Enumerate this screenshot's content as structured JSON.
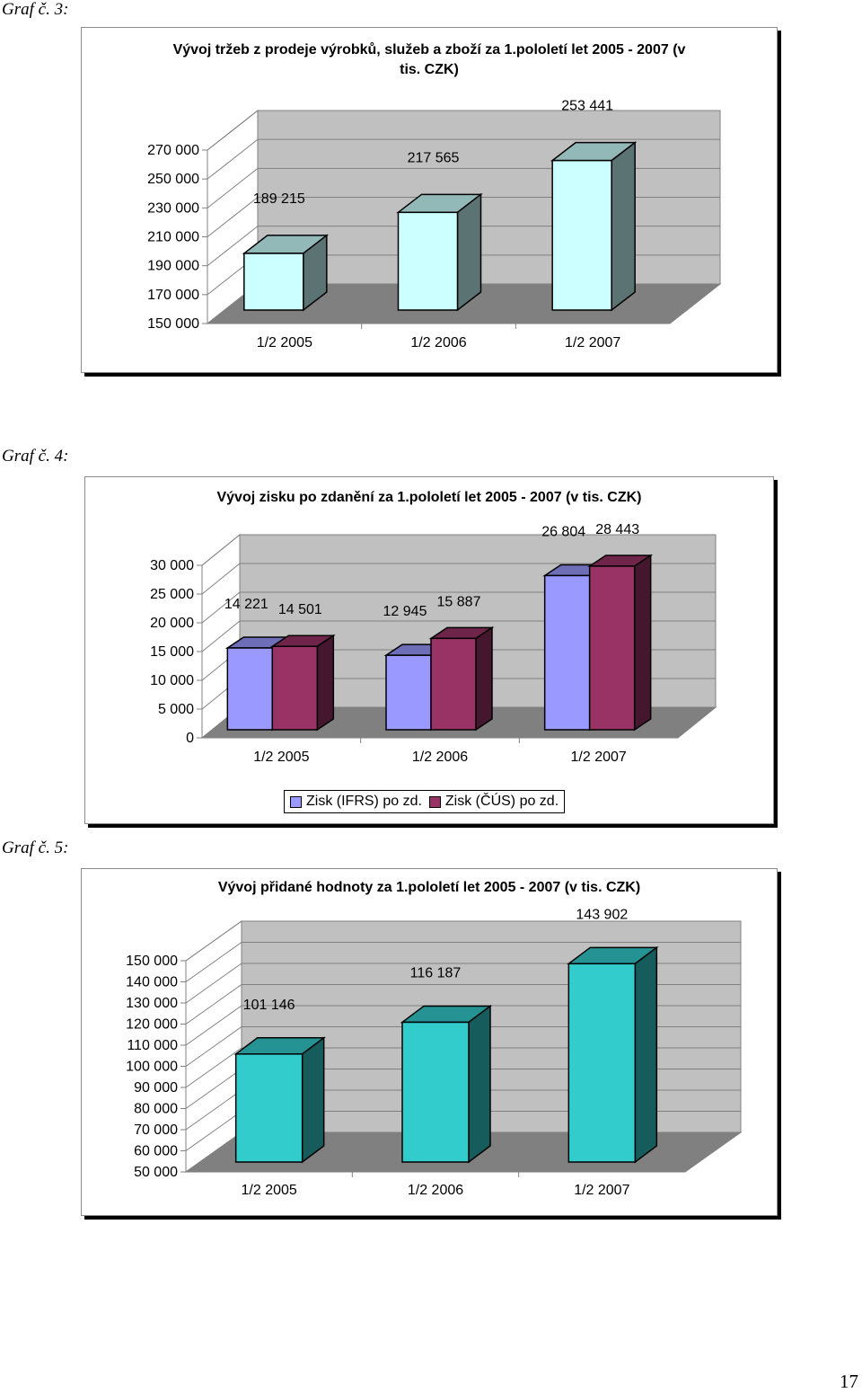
{
  "captions": [
    "Graf č. 3:",
    "Graf č. 4:",
    "Graf č. 5:"
  ],
  "page_number": "17",
  "chart_data": [
    {
      "type": "bar",
      "title": "Vývoj tržeb z prodeje výrobků, služeb a zboží za 1.pololetí let 2005 - 2007 (v tis. CZK)",
      "categories": [
        "1/2 2005",
        "1/2 2006",
        "1/2 2007"
      ],
      "y_ticks": [
        "150 000",
        "170 000",
        "190 000",
        "210 000",
        "230 000",
        "250 000",
        "270 000"
      ],
      "ylim": [
        150000,
        270000
      ],
      "series": [
        {
          "values": [
            189215,
            217565,
            253441
          ],
          "labels": [
            "189 215",
            "217 565",
            "253 441"
          ],
          "color": "#ccffff"
        }
      ]
    },
    {
      "type": "bar",
      "title": "Vývoj zisku po zdanění za 1.pololetí let 2005 - 2007 (v tis. CZK)",
      "categories": [
        "1/2 2005",
        "1/2 2006",
        "1/2 2007"
      ],
      "y_ticks": [
        "0",
        "5 000",
        "10 000",
        "15 000",
        "20 000",
        "25 000",
        "30 000"
      ],
      "ylim": [
        0,
        30000
      ],
      "legend_position": "bottom",
      "series": [
        {
          "name": "Zisk (IFRS) po zd.",
          "values": [
            14221,
            12945,
            26804
          ],
          "labels": [
            "14 221",
            "12 945",
            "26 804"
          ],
          "color": "#9999ff"
        },
        {
          "name": "Zisk (ČÚS) po zd.",
          "values": [
            14501,
            15887,
            28443
          ],
          "labels": [
            "14 501",
            "15 887",
            "28 443"
          ],
          "color": "#993366"
        }
      ]
    },
    {
      "type": "bar",
      "title": "Vývoj přidané hodnoty za 1.pololetí let 2005 - 2007 (v tis. CZK)",
      "categories": [
        "1/2 2005",
        "1/2 2006",
        "1/2 2007"
      ],
      "y_ticks": [
        "50 000",
        "60 000",
        "70 000",
        "80 000",
        "90 000",
        "100 000",
        "110 000",
        "120 000",
        "130 000",
        "140 000",
        "150 000"
      ],
      "ylim": [
        50000,
        150000
      ],
      "series": [
        {
          "values": [
            101146,
            116187,
            143902
          ],
          "labels": [
            "101 146",
            "116 187",
            "143 902"
          ],
          "color": "#33cccc"
        }
      ]
    }
  ]
}
